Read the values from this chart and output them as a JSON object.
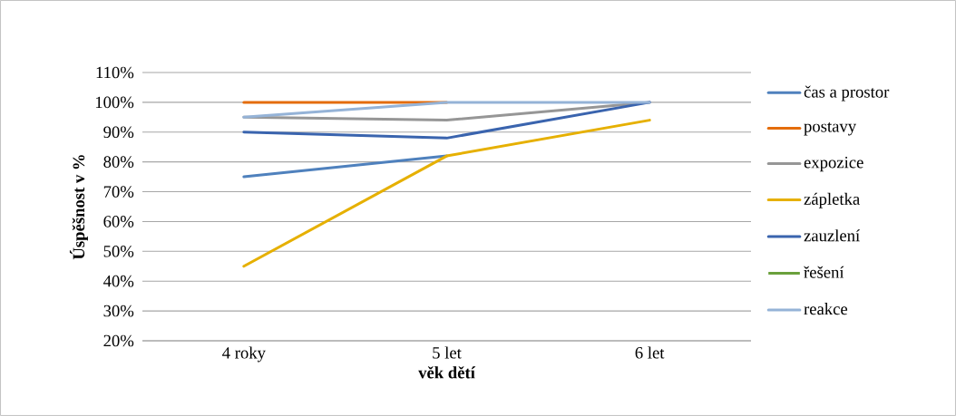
{
  "chart_data": {
    "type": "line",
    "xlabel": "věk dětí",
    "ylabel": "Úspěšnost v %",
    "categories": [
      "4 roky",
      "5 let",
      "6 let"
    ],
    "series": [
      {
        "name": "čas a prostor",
        "color": "#4f81bd",
        "values": [
          75,
          82,
          null
        ]
      },
      {
        "name": "postavy",
        "color": "#e46c0a",
        "values": [
          100,
          100,
          null
        ]
      },
      {
        "name": "expozice",
        "color": "#969696",
        "values": [
          95,
          94,
          100
        ]
      },
      {
        "name": "zápletka",
        "color": "#e6b000",
        "values": [
          45,
          82,
          94
        ]
      },
      {
        "name": "zauzlení",
        "color": "#3a64ae",
        "values": [
          90,
          88,
          100
        ]
      },
      {
        "name": "řešení",
        "color": "#6aa03c",
        "values": [
          null,
          null,
          null
        ]
      },
      {
        "name": "reakce",
        "color": "#95b3d7",
        "values": [
          95,
          100,
          100
        ]
      }
    ],
    "ylim": [
      20,
      110
    ],
    "yticks": [
      {
        "value": 20,
        "label": "20%"
      },
      {
        "value": 30,
        "label": "30%"
      },
      {
        "value": 40,
        "label": "40%"
      },
      {
        "value": 50,
        "label": "50%"
      },
      {
        "value": 60,
        "label": "60%"
      },
      {
        "value": 70,
        "label": "70%"
      },
      {
        "value": 80,
        "label": "80%"
      },
      {
        "value": 90,
        "label": "90%"
      },
      {
        "value": 100,
        "label": "100%"
      },
      {
        "value": 110,
        "label": "110%"
      }
    ],
    "grid": "y",
    "legend": "right"
  }
}
